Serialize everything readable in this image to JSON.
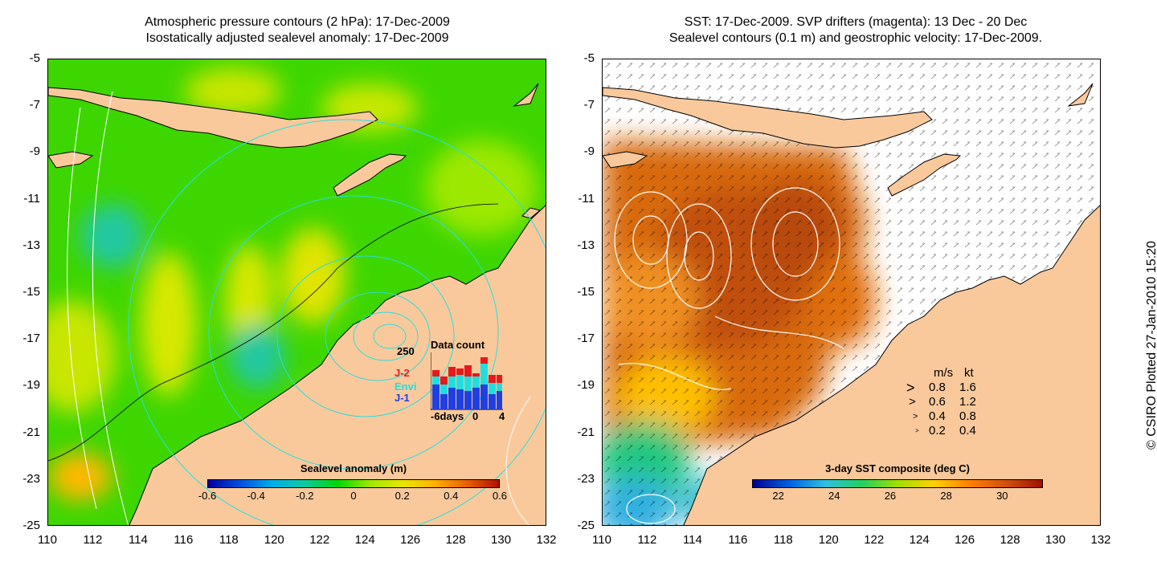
{
  "left": {
    "title_line1": "Atmospheric pressure contours (2 hPa): 17-Dec-2009",
    "title_line2": "Isostatically adjusted sealevel anomaly: 17-Dec-2009",
    "colorbar_title": "Sealevel anomaly (m)",
    "colorbar_ticks": [
      "-0.6",
      "-0.4",
      "-0.2",
      "0",
      "0.2",
      "0.4",
      "0.6"
    ],
    "datacount": {
      "title": "Data count",
      "ymax_label": "250",
      "series_labels": [
        "J-2",
        "Envi",
        "J-1"
      ],
      "series_colors": [
        "#e41a1c",
        "#22dddd",
        "#1f3fe0"
      ],
      "xtick_labels": [
        "-6days",
        "0",
        "4"
      ]
    }
  },
  "right": {
    "title_line1": "SST: 17-Dec-2009. SVP drifters (magenta): 13 Dec - 20 Dec",
    "title_line2": "Sealevel contours (0.1 m) and geostrophic velocity: 17-Dec-2009.",
    "colorbar_title": "3-day SST composite (deg C)",
    "colorbar_ticks": [
      "22",
      "24",
      "26",
      "28",
      "30"
    ],
    "speed_legend": {
      "header_ms": "m/s",
      "header_kt": "kt",
      "rows": [
        {
          "ms": "0.8",
          "kt": "1.6"
        },
        {
          "ms": "0.6",
          "kt": "1.2"
        },
        {
          "ms": "0.4",
          "kt": "0.8"
        },
        {
          "ms": "0.2",
          "kt": "0.4"
        }
      ]
    }
  },
  "y_ticks": [
    "-5",
    "-7",
    "-9",
    "-11",
    "-13",
    "-15",
    "-17",
    "-19",
    "-21",
    "-23",
    "-25"
  ],
  "x_ticks": [
    "110",
    "112",
    "114",
    "116",
    "118",
    "120",
    "122",
    "124",
    "126",
    "128",
    "130",
    "132"
  ],
  "credit": "© CSIRO Plotted 27-Jan-2010 15:20",
  "colors": {
    "land": "#f9c99c",
    "sla_palette": [
      "#0000a0",
      "#0050e0",
      "#00b0e8",
      "#10c8a0",
      "#00d800",
      "#9ee800",
      "#e8e800",
      "#ffb000",
      "#e86000",
      "#b01000"
    ],
    "sst_palette": [
      "#000090",
      "#0060e0",
      "#30c0e0",
      "#20d060",
      "#a0e000",
      "#ffd000",
      "#ff8000",
      "#d05010",
      "#a01000"
    ]
  }
}
